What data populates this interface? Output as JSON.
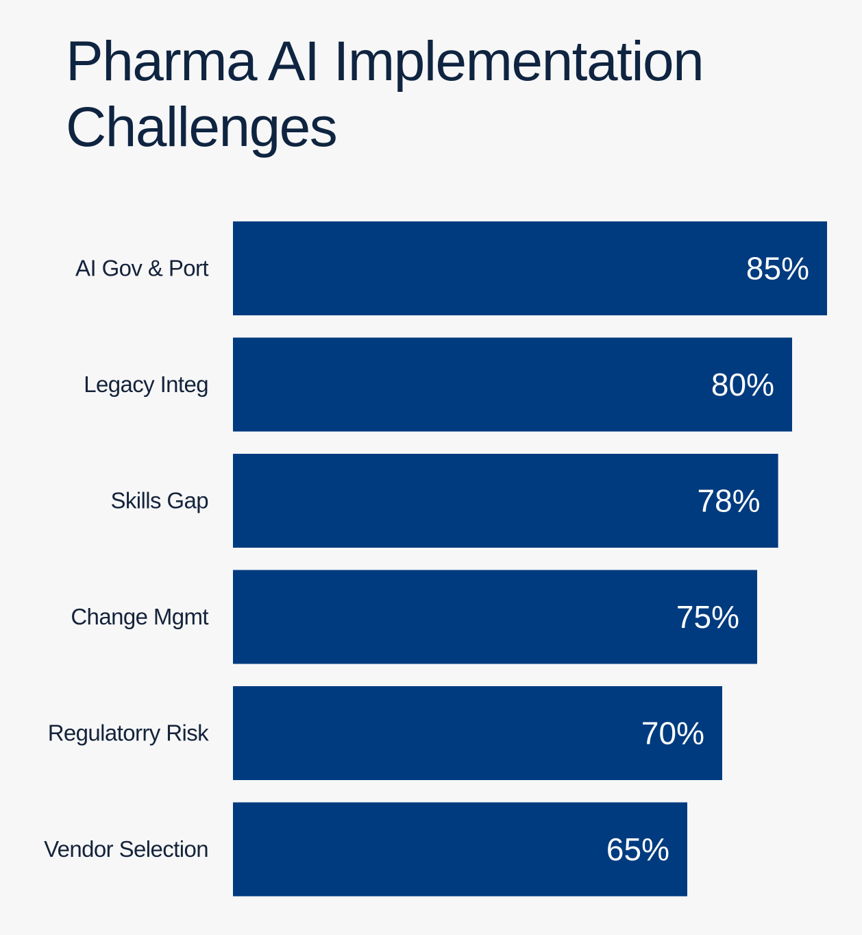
{
  "chart_data": {
    "type": "bar",
    "orientation": "horizontal",
    "title": "Pharma AI Implementation Challenges",
    "categories": [
      "AI Gov & Port",
      "Legacy Integ",
      "Skills Gap",
      "Change Mgmt",
      "Regulatorry Risk",
      "Vendor Selection"
    ],
    "values": [
      85,
      80,
      78,
      75,
      70,
      65
    ],
    "value_labels": [
      "85%",
      "80%",
      "78%",
      "75%",
      "70%",
      "65%"
    ],
    "xlabel": "",
    "ylabel": "",
    "grid": false,
    "legend": "none",
    "colors": {
      "bar": "#003b7f",
      "title": "#0f2440",
      "label": "#14233a",
      "value_label": "#ffffff",
      "background": "#f7f7f8"
    }
  }
}
